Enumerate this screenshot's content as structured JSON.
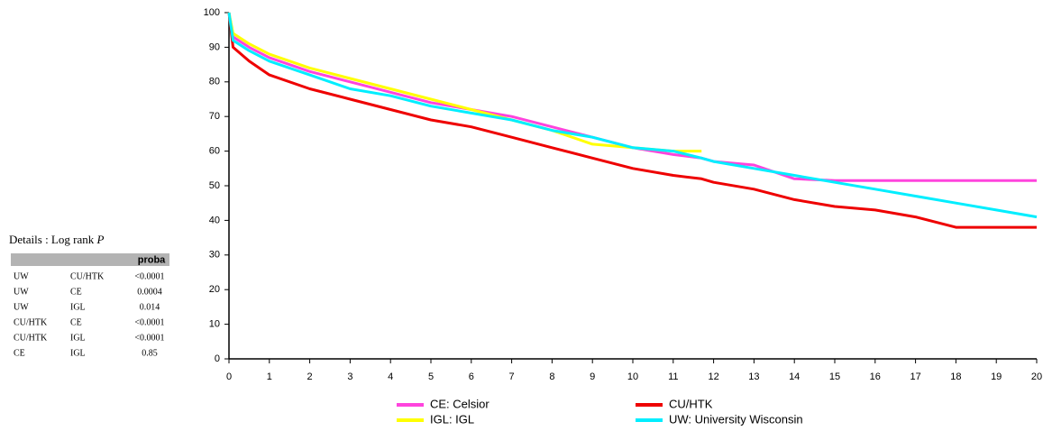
{
  "chart_data": {
    "type": "line",
    "x": [
      0,
      0.1,
      0.5,
      1,
      2,
      3,
      4,
      5,
      6,
      7,
      8,
      9,
      10,
      11,
      11.7,
      12,
      13,
      14,
      15,
      16,
      17,
      18,
      19,
      20
    ],
    "series": [
      {
        "name": "CE: Celsior",
        "color": "#ff44dd",
        "values": [
          100,
          93,
          90,
          87,
          83,
          80,
          77,
          74,
          72,
          70,
          67,
          64,
          61,
          59,
          58,
          57,
          56,
          52,
          51.5,
          51.5,
          51.5,
          51.5,
          51.5,
          51.5
        ]
      },
      {
        "name": "CU/HTK",
        "color": "#ee0000",
        "values": [
          100,
          90,
          86,
          82,
          78,
          75,
          72,
          69,
          67,
          64,
          61,
          58,
          55,
          53,
          52,
          51,
          49,
          46,
          44,
          43,
          41,
          38,
          38,
          38
        ]
      },
      {
        "name": "IGL: IGL",
        "color": "#ffff00",
        "values": [
          100,
          94,
          91,
          88,
          84,
          81,
          78,
          75,
          72,
          69,
          66,
          62,
          61,
          60,
          60,
          null,
          null,
          null,
          null,
          null,
          null,
          null,
          null,
          null
        ]
      },
      {
        "name": "UW: University Wisconsin",
        "color": "#00eeff",
        "values": [
          100,
          92,
          89,
          86,
          82,
          78,
          76,
          73,
          71,
          69,
          66,
          64,
          61,
          60,
          58,
          57,
          55,
          53,
          51,
          49,
          47,
          45,
          43,
          41
        ]
      }
    ],
    "xlim": [
      0,
      20
    ],
    "xticks": [
      0,
      1,
      2,
      3,
      4,
      5,
      6,
      7,
      8,
      9,
      10,
      11,
      12,
      13,
      14,
      15,
      16,
      17,
      18,
      19,
      20
    ],
    "ylim": [
      0,
      100
    ],
    "yticks": [
      0,
      10,
      20,
      30,
      40,
      50,
      60,
      70,
      80,
      90,
      100
    ],
    "grid": false
  },
  "table": {
    "title": "Details : Log rank",
    "title_var": "P",
    "header": "proba",
    "rows": [
      [
        "UW",
        "CU/HTK",
        "<0.0001"
      ],
      [
        "UW",
        "CE",
        "0.0004"
      ],
      [
        "UW",
        "IGL",
        "0.014"
      ],
      [
        "CU/HTK",
        "CE",
        "<0.0001"
      ],
      [
        "CU/HTK",
        "IGL",
        "<0.0001"
      ],
      [
        "CE",
        "IGL",
        "0.85"
      ]
    ]
  }
}
